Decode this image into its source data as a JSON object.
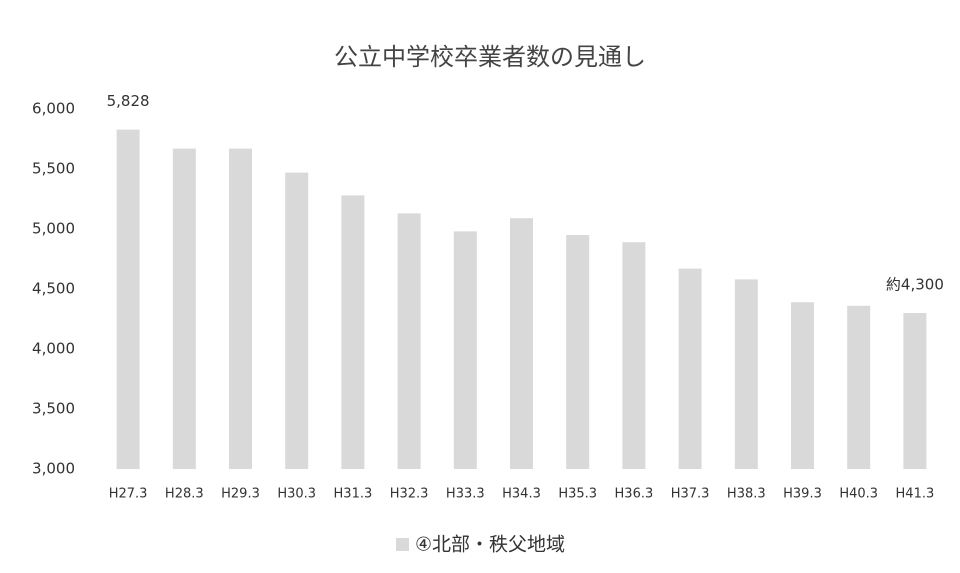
{
  "chart_data": {
    "type": "bar",
    "title": "公立中学校卒業者数の見通し",
    "categories": [
      "H27.3",
      "H28.3",
      "H29.3",
      "H30.3",
      "H31.3",
      "H32.3",
      "H33.3",
      "H34.3",
      "H35.3",
      "H36.3",
      "H37.3",
      "H38.3",
      "H39.3",
      "H40.3",
      "H41.3"
    ],
    "series": [
      {
        "name": "④北部・秩父地域",
        "color": "#d9d9d9",
        "values": [
          5828,
          5670,
          5670,
          5470,
          5280,
          5130,
          4980,
          5090,
          4950,
          4890,
          4670,
          4580,
          4390,
          4360,
          4300
        ],
        "value_labels": [
          "5,828",
          null,
          null,
          null,
          null,
          null,
          null,
          null,
          null,
          null,
          null,
          null,
          null,
          null,
          "約4,300"
        ]
      }
    ],
    "ylim": [
      3000,
      6000
    ],
    "yticks": [
      {
        "value": 3000,
        "label": "3,000"
      },
      {
        "value": 3500,
        "label": "3,500"
      },
      {
        "value": 4000,
        "label": "4,000"
      },
      {
        "value": 4500,
        "label": "4,500"
      },
      {
        "value": 5000,
        "label": "5,000"
      },
      {
        "value": 5500,
        "label": "5,500"
      },
      {
        "value": 6000,
        "label": "6,000"
      }
    ],
    "grid": false,
    "legend": "bottom"
  }
}
